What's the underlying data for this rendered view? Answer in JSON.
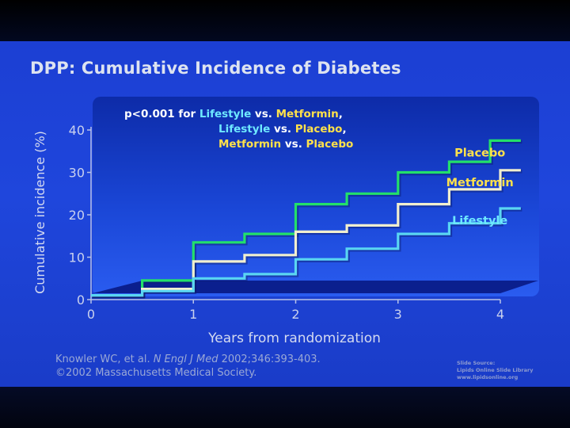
{
  "slide": {
    "title": "DPP: Cumulative Incidence of Diabetes",
    "citation": {
      "line1_prefix": "Knowler WC, et al. ",
      "line1_journal": "N Engl J Med",
      "line1_suffix": " 2002;346:393-403.",
      "line2": "©2002 Massachusetts Medical Society."
    },
    "source": {
      "line1": "Slide Source:",
      "line2": "Lipids Online Slide Library",
      "line3": "www.lipidsonline.org"
    }
  },
  "annotation": {
    "lines": [
      [
        {
          "text": "p<0.001 for ",
          "color": "#ffffff"
        },
        {
          "text": "Lifestyle",
          "color": "#6ee8ff"
        },
        {
          "text": " vs. ",
          "color": "#ffffff"
        },
        {
          "text": "Metformin",
          "color": "#ffe14a"
        },
        {
          "text": ",",
          "color": "#ffffff"
        }
      ],
      [
        {
          "text": "Lifestyle",
          "color": "#6ee8ff"
        },
        {
          "text": " vs. ",
          "color": "#ffffff"
        },
        {
          "text": "Placebo",
          "color": "#ffe14a"
        },
        {
          "text": ",",
          "color": "#ffffff"
        }
      ],
      [
        {
          "text": "Metformin",
          "color": "#ffe14a"
        },
        {
          "text": " vs. ",
          "color": "#ffffff"
        },
        {
          "text": "Placebo",
          "color": "#ffe14a"
        }
      ]
    ]
  },
  "chart_data": {
    "type": "line",
    "step": true,
    "title": "",
    "xlabel": "Years from randomization",
    "ylabel": "Cumulative incidence (%)",
    "xlim": [
      0,
      4
    ],
    "ylim": [
      0,
      40
    ],
    "xticks": [
      "0",
      "1",
      "2",
      "3",
      "4"
    ],
    "yticks": [
      "0",
      "10",
      "20",
      "30",
      "40"
    ],
    "grid": false,
    "legend": "inline labels at right end of each series",
    "series": [
      {
        "name": "Placebo",
        "color": "#23e06a",
        "label_color": "#ffe14a",
        "points": [
          [
            0,
            1
          ],
          [
            0.5,
            1
          ],
          [
            0.5,
            4.5
          ],
          [
            1,
            4.5
          ],
          [
            1,
            13.5
          ],
          [
            1.5,
            13.5
          ],
          [
            1.5,
            15.5
          ],
          [
            2,
            15.5
          ],
          [
            2,
            22.5
          ],
          [
            2.5,
            22.5
          ],
          [
            2.5,
            25
          ],
          [
            3,
            25
          ],
          [
            3,
            30
          ],
          [
            3.5,
            30
          ],
          [
            3.5,
            32.5
          ],
          [
            3.9,
            32.5
          ],
          [
            3.9,
            37.5
          ],
          [
            4.2,
            37.5
          ]
        ]
      },
      {
        "name": "Metformin",
        "color": "#f1efcf",
        "label_color": "#ffe14a",
        "points": [
          [
            0,
            1
          ],
          [
            0.5,
            1
          ],
          [
            0.5,
            2.5
          ],
          [
            1,
            2.5
          ],
          [
            1,
            9
          ],
          [
            1.5,
            9
          ],
          [
            1.5,
            10.5
          ],
          [
            2,
            10.5
          ],
          [
            2,
            16
          ],
          [
            2.5,
            16
          ],
          [
            2.5,
            17.5
          ],
          [
            3,
            17.5
          ],
          [
            3,
            22.5
          ],
          [
            3.5,
            22.5
          ],
          [
            3.5,
            26
          ],
          [
            4,
            26
          ],
          [
            4,
            30.5
          ],
          [
            4.2,
            30.5
          ]
        ]
      },
      {
        "name": "Lifestyle",
        "color": "#5ad6f2",
        "label_color": "#6ee8ff",
        "points": [
          [
            0,
            1
          ],
          [
            0.5,
            1
          ],
          [
            0.5,
            2
          ],
          [
            1,
            2
          ],
          [
            1,
            5
          ],
          [
            1.5,
            5
          ],
          [
            1.5,
            6
          ],
          [
            2,
            6
          ],
          [
            2,
            9.5
          ],
          [
            2.5,
            9.5
          ],
          [
            2.5,
            12
          ],
          [
            3,
            12
          ],
          [
            3,
            15.5
          ],
          [
            3.5,
            15.5
          ],
          [
            3.5,
            18
          ],
          [
            4,
            18
          ],
          [
            4,
            21.5
          ],
          [
            4.2,
            21.5
          ]
        ]
      }
    ]
  }
}
